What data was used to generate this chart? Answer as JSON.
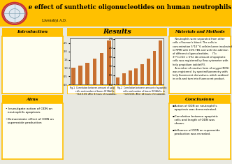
{
  "title": "The effect of sunthetic oligonucleotides on human neutrophils",
  "author": "Livenskyi A.D.",
  "bg_color": "#e8e8e0",
  "header_bg": "#FFC000",
  "section_header_bg": "#FFC000",
  "section_bg": "#FFFFF0",
  "bar_color": "#C87030",
  "logo_outer": "#cc3333",
  "logo_inner": "#e0e8f0",
  "fig1_values": [
    1.0,
    1.15,
    1.3,
    1.55,
    1.9,
    2.65
  ],
  "fig2_values": [
    0.4,
    0.6,
    0.75,
    0.9,
    1.1,
    1.4,
    1.85,
    2.4
  ],
  "fig1_caption": "Fig.1  Correlation between amount of apoptotic\n        cells and number of bases Of NkbGs, in\n        ~CLS.S.OS. After 4 hours of incubation.",
  "fig2_caption": "Fig.2  Correlation between amount of apoptotic\n        cells and number of bases Of NkbGs, in\n        ~CLS.S.OS. After 24 hours of incubation.",
  "intro_title": "Introduction",
  "results_title": "Results",
  "matmeth_title": "Materials and Methods",
  "matmeth_text": "   Neutrophils were separated from other\ncells of human's blood. The cells in\nconcentration 5*10^6 cells/ml were incubated\nin RPMI with 10% FBS and with the addition\nof different oligonucleotides.    (T=\n37°C,CO2 = 5%). An amount of apoptotic\ncells was registered by flow cytometer with\nhelp propidium iodide(PI).\n   A number of reactive form of oxygen(ROS)\nwas registered  by spectrofluorometry with\nhelp fluorescent derivatives, which oxidized\nin cells and turn into fluorescent product.",
  "aims_title": "Aims",
  "aims_bullets": [
    "• Investigate action of ODN on\n  neutrophils apoptosis",
    "•Demonstrate effect of ODN on\n  superoxide production"
  ],
  "conclusions_title": "Conclusions",
  "conclusions_bullets": [
    "▪Action of ODN on neutrophil’s\n  apoptosis was demonstrated.",
    "▪Correlation between apoptotic\n  cells and length of ODN was\n  shown.",
    "▪Influence of ODN on superoxide\n  production was revealed."
  ]
}
